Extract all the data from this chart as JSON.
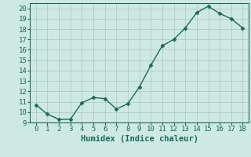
{
  "x": [
    0,
    1,
    2,
    3,
    4,
    5,
    6,
    7,
    8,
    9,
    10,
    11,
    12,
    13,
    14,
    15,
    16,
    17,
    18
  ],
  "y": [
    10.7,
    9.8,
    9.3,
    9.3,
    10.9,
    11.4,
    11.3,
    10.3,
    10.8,
    12.4,
    14.5,
    16.4,
    17.0,
    18.1,
    19.6,
    20.2,
    19.5,
    19.0,
    18.1
  ],
  "line_color": "#1a6b5a",
  "marker": "D",
  "marker_size": 2.5,
  "linewidth": 1.0,
  "bg_color": "#cee8e2",
  "grid_color": "#b0ccc8",
  "xlabel": "Humidex (Indice chaleur)",
  "xlabel_fontsize": 7.5,
  "tick_fontsize": 6.5,
  "xlim": [
    -0.5,
    18.5
  ],
  "ylim": [
    9,
    20.5
  ],
  "yticks": [
    9,
    10,
    11,
    12,
    13,
    14,
    15,
    16,
    17,
    18,
    19,
    20
  ],
  "xticks": [
    0,
    1,
    2,
    3,
    4,
    5,
    6,
    7,
    8,
    9,
    10,
    11,
    12,
    13,
    14,
    15,
    16,
    17,
    18
  ]
}
